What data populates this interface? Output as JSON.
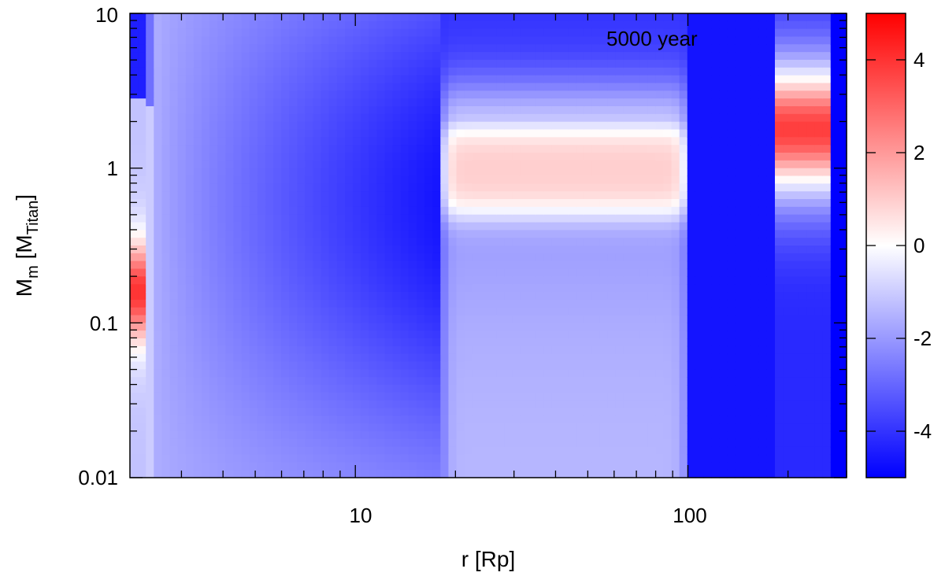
{
  "chart_data": {
    "type": "heatmap",
    "annotation": "5000 year",
    "xlabel": "r [Rp]",
    "ylabel": {
      "main": "M",
      "sub1": "m",
      "mid": " [M",
      "sub2": "Titan",
      "end": "]"
    },
    "x_scale": "log",
    "y_scale": "log",
    "xlim": [
      2.1,
      300
    ],
    "ylim": [
      0.01,
      10
    ],
    "x_ticks": [
      {
        "value": 10,
        "label": "10"
      },
      {
        "value": 100,
        "label": "100"
      }
    ],
    "y_ticks": [
      {
        "value": 0.01,
        "label": "0.01"
      },
      {
        "value": 0.1,
        "label": "0.1"
      },
      {
        "value": 1,
        "label": "1"
      },
      {
        "value": 10,
        "label": "10"
      }
    ],
    "colorbar": {
      "range": [
        -5,
        5
      ],
      "ticks": [
        {
          "value": 4,
          "label": "4"
        },
        {
          "value": 2,
          "label": "2"
        },
        {
          "value": 0,
          "label": "0"
        },
        {
          "value": -2,
          "label": "-2"
        },
        {
          "value": -4,
          "label": "-4"
        }
      ],
      "colors": {
        "low": "#0000ff",
        "mid": "#ffffff",
        "high": "#ff0000"
      }
    },
    "grid": false,
    "regions": {
      "description_free": true,
      "hot_spots": [
        {
          "r_range": [
            2.1,
            2.5
          ],
          "m_center": 0.16,
          "peak": 4.0
        },
        {
          "r_range": [
            18,
            100
          ],
          "m_range": [
            0.55,
            2.0
          ],
          "peak": 1.0
        },
        {
          "r_range": [
            190,
            270
          ],
          "m_center": 1.8,
          "peak": 3.8
        }
      ]
    }
  }
}
